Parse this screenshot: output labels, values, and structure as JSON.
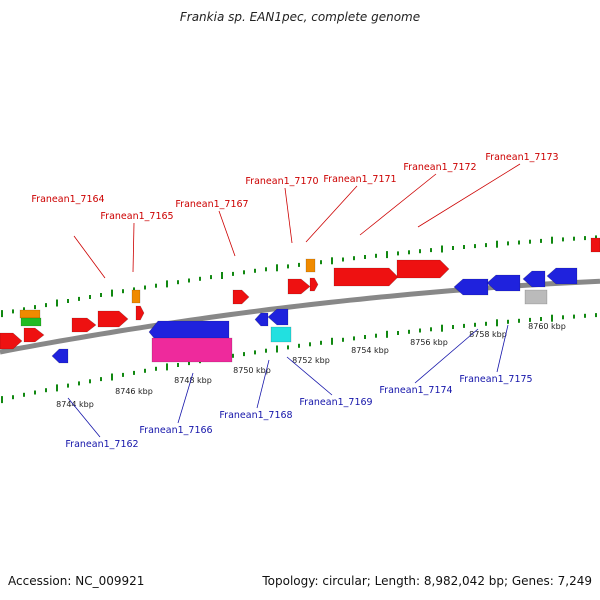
{
  "title": "Frankia sp. EAN1pec, complete genome",
  "footer": {
    "accession": "Accession: NC_009921",
    "summary": "Topology: circular; Length: 8,982,042 bp; Genes: 7,249"
  },
  "colors": {
    "forward_gene": "#ee1111",
    "reverse_gene": "#1f22dd",
    "forward_label": "#cc0000",
    "reverse_label": "#1515aa",
    "tick": "#118811",
    "backbone": "#888888",
    "orange": "#f08a00",
    "green": "#22bb22",
    "magenta": "#ee2a9c",
    "cyan": "#22e0e0",
    "gray": "#bbbbbb"
  },
  "scale_labels": [
    "8744 kbp",
    "8746 kbp",
    "8748 kbp",
    "8750 kbp",
    "8752 kbp",
    "8754 kbp",
    "8756 kbp",
    "8758 kbp",
    "8760 kbp"
  ],
  "forward_labels": [
    "Franean1_7164",
    "Franean1_7165",
    "Franean1_7167",
    "Franean1_7170",
    "Franean1_7171",
    "Franean1_7172",
    "Franean1_7173"
  ],
  "reverse_labels": [
    "Franean1_7162",
    "Franean1_7166",
    "Franean1_7168",
    "Franean1_7169",
    "Franean1_7174",
    "Franean1_7175"
  ]
}
